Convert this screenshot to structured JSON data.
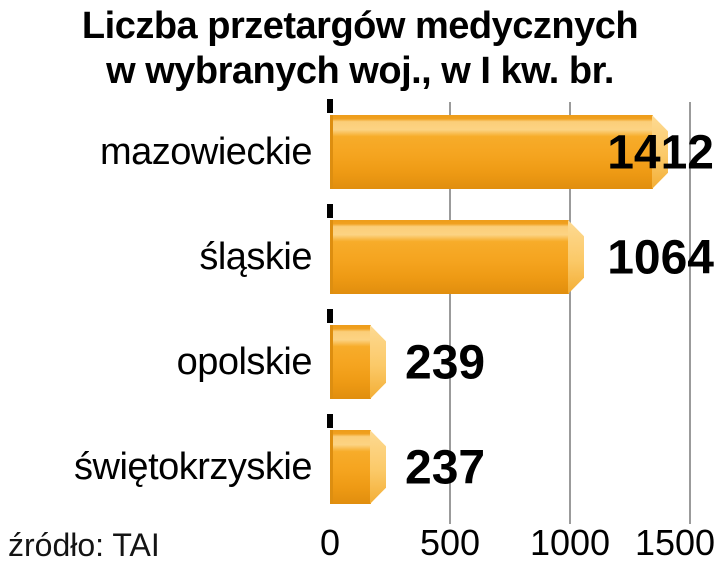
{
  "title": {
    "line1": "Liczba przetargów medycznych",
    "line2": "w wybranych woj., w I kw. br."
  },
  "source": "źródło: TAI",
  "colors": {
    "bar_main": "#f5a41f",
    "bar_highlight": "#fcd383",
    "bar_shadow": "#e18e0e",
    "bar_end_cap": "#fdda93",
    "gridline": "#9b9b9b",
    "text": "#000000",
    "background": "#ffffff"
  },
  "chart_data": {
    "type": "bar",
    "orientation": "horizontal",
    "title": "Liczba przetargów medycznych w wybranych woj., w I kw. br.",
    "categories": [
      "mazowieckie",
      "śląskie",
      "opolskie",
      "świętokrzyskie"
    ],
    "values": [
      1412,
      1064,
      239,
      237
    ],
    "xlabel": "",
    "ylabel": "",
    "xlim": [
      0,
      1500
    ],
    "xticks": [
      "0",
      "500",
      "1000",
      "1500"
    ],
    "grid": true,
    "legend": false,
    "value_labels": true,
    "source": "źródło: TAI"
  }
}
